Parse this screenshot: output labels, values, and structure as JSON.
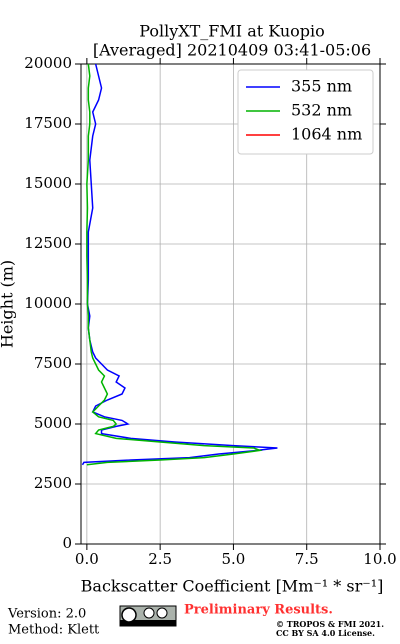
{
  "chart_data": {
    "type": "line",
    "orientation": "vertical",
    "title": "PollyXT_FMI at Kuopio",
    "subtitle": "[Averaged] 20210409 03:41-05:06",
    "x_label": "Backscatter Coefficient [Mm⁻¹ * sr⁻¹]",
    "y_label": "Height (m)",
    "heights": [
      3300,
      3400,
      3500,
      3600,
      3750,
      3900,
      4000,
      4100,
      4250,
      4400,
      4600,
      4750,
      4900,
      5000,
      5150,
      5300,
      5500,
      5750,
      6000,
      6250,
      6500,
      6750,
      7000,
      7250,
      7500,
      7750,
      8000,
      8500,
      9000,
      9500,
      10000,
      11000,
      12000,
      13000,
      14000,
      15000,
      16000,
      17000,
      17500,
      18000,
      18500,
      19000,
      19500,
      20000
    ],
    "series": [
      {
        "name": "355 nm",
        "color": "#0000ff",
        "values": [
          -0.15,
          -0.1,
          1.5,
          3.5,
          4.5,
          5.8,
          6.5,
          5.0,
          3.0,
          1.5,
          0.5,
          0.5,
          1.0,
          1.4,
          1.2,
          0.6,
          0.2,
          0.3,
          0.7,
          1.2,
          1.3,
          1.0,
          1.1,
          0.7,
          0.5,
          0.3,
          0.2,
          0.1,
          0.05,
          0.1,
          0.02,
          0.05,
          0.05,
          0.05,
          0.2,
          0.15,
          0.1,
          0.2,
          0.3,
          0.2,
          0.4,
          0.5,
          0.4,
          0.3
        ]
      },
      {
        "name": "532 nm",
        "color": "#00b400",
        "values": [
          0.0,
          0.7,
          2.5,
          4.0,
          5.0,
          5.9,
          5.7,
          4.0,
          2.5,
          1.0,
          0.3,
          0.4,
          0.9,
          1.0,
          0.9,
          0.4,
          0.2,
          0.4,
          0.6,
          0.7,
          0.6,
          0.5,
          0.6,
          0.4,
          0.3,
          0.2,
          0.15,
          0.1,
          0.05,
          0.05,
          0.02,
          0.02,
          0.0,
          0.0,
          0.02,
          0.0,
          0.05,
          0.05,
          0.1,
          0.1,
          0.05,
          0.05,
          0.1,
          0.05
        ]
      },
      {
        "name": "1064 nm",
        "color": "#ff0000",
        "values": [
          null,
          null,
          null,
          null,
          null,
          null,
          null,
          null,
          null,
          null,
          null,
          null,
          null,
          null,
          null,
          null,
          null,
          null,
          null,
          null,
          null,
          null,
          null,
          null,
          null,
          null,
          null,
          null,
          null,
          null,
          null,
          null,
          null,
          null,
          null,
          null,
          null,
          null,
          null,
          null,
          null,
          null,
          null,
          null
        ]
      }
    ],
    "xlim": [
      -0.2,
      10
    ],
    "xticks": [
      {
        "value": 0,
        "label": "0.0"
      },
      {
        "value": 2.5,
        "label": "2.5"
      },
      {
        "value": 5,
        "label": "5.0"
      },
      {
        "value": 7.5,
        "label": "7.5"
      },
      {
        "value": 10,
        "label": "10.0"
      }
    ],
    "ylim": [
      0,
      20000
    ],
    "yticks": [
      0,
      2500,
      5000,
      7500,
      10000,
      12500,
      15000,
      17500,
      20000
    ],
    "grid": true,
    "legend": "upper right"
  },
  "footer": {
    "version": "Version: 2.0",
    "method": "Method: Klett",
    "preliminary": "Preliminary Results.",
    "copyright": "© TROPOS & FMI 2021.",
    "license": "CC BY SA 4.0 License."
  }
}
